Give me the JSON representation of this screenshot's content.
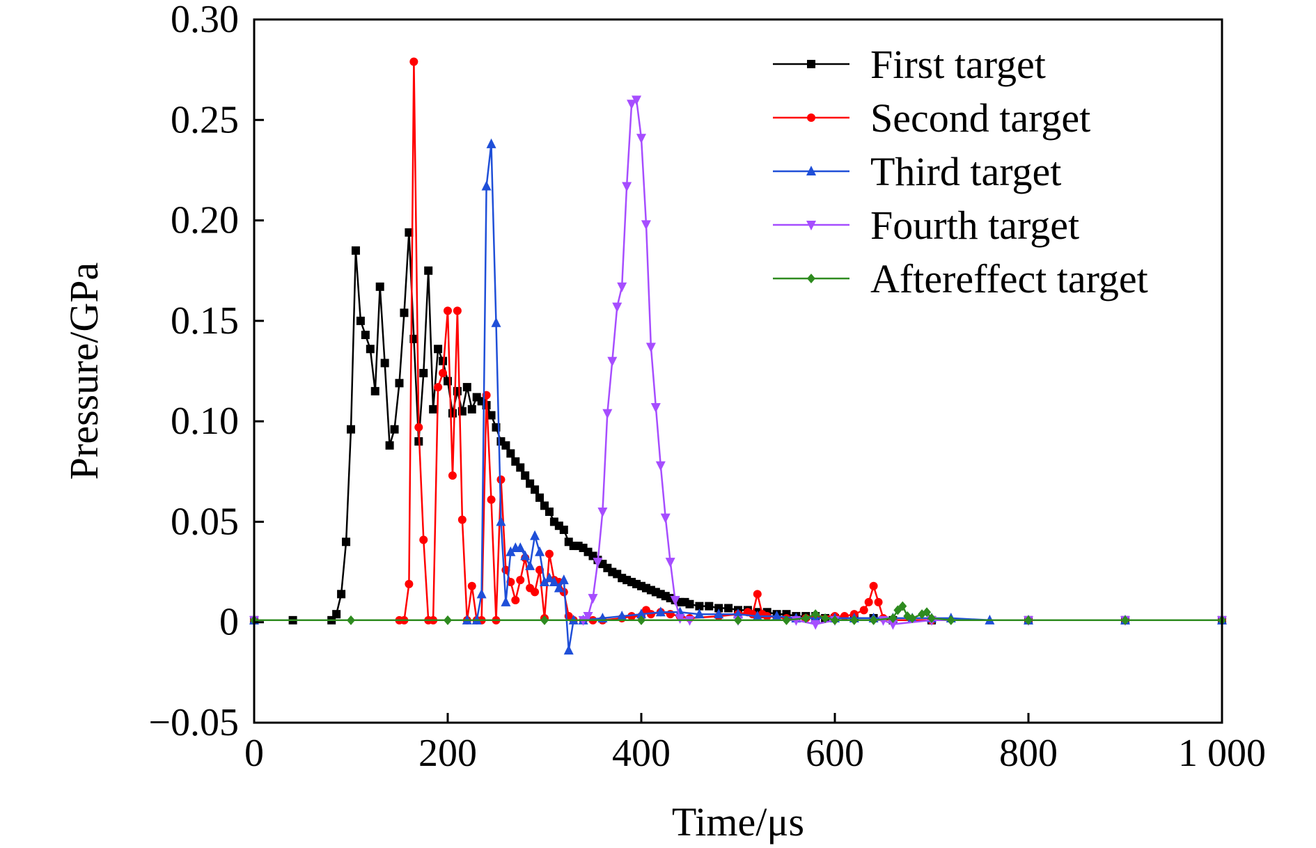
{
  "chart_data": {
    "type": "line",
    "xlabel": "Time/μs",
    "ylabel": "Pressure/GPa",
    "xlim": [
      0,
      1000
    ],
    "ylim": [
      -0.05,
      0.3
    ],
    "x_ticks": [
      0,
      200,
      400,
      600,
      800,
      1000
    ],
    "x_tick_labels": [
      "0",
      "200",
      "400",
      "600",
      "800",
      "1 000"
    ],
    "y_ticks": [
      -0.05,
      0,
      0.05,
      0.1,
      0.15,
      0.2,
      0.25,
      0.3
    ],
    "y_tick_labels": [
      "−0.05",
      "0",
      "0.05",
      "0.10",
      "0.15",
      "0.20",
      "0.25",
      "0.30"
    ],
    "grid": false,
    "legend_position": "top-right",
    "series": [
      {
        "name": "First target",
        "color": "#000000",
        "marker": "square",
        "points": [
          [
            0,
            0.001
          ],
          [
            40,
            0.001
          ],
          [
            80,
            0.001
          ],
          [
            85,
            0.004
          ],
          [
            90,
            0.014
          ],
          [
            95,
            0.04
          ],
          [
            100,
            0.096
          ],
          [
            105,
            0.185
          ],
          [
            110,
            0.15
          ],
          [
            115,
            0.143
          ],
          [
            120,
            0.136
          ],
          [
            125,
            0.115
          ],
          [
            130,
            0.167
          ],
          [
            135,
            0.129
          ],
          [
            140,
            0.088
          ],
          [
            145,
            0.096
          ],
          [
            150,
            0.119
          ],
          [
            155,
            0.154
          ],
          [
            160,
            0.194
          ],
          [
            165,
            0.141
          ],
          [
            170,
            0.09
          ],
          [
            175,
            0.124
          ],
          [
            180,
            0.175
          ],
          [
            185,
            0.106
          ],
          [
            190,
            0.136
          ],
          [
            195,
            0.13
          ],
          [
            200,
            0.12
          ],
          [
            205,
            0.104
          ],
          [
            210,
            0.115
          ],
          [
            215,
            0.105
          ],
          [
            220,
            0.117
          ],
          [
            225,
            0.106
          ],
          [
            230,
            0.112
          ],
          [
            235,
            0.11
          ],
          [
            240,
            0.108
          ],
          [
            245,
            0.103
          ],
          [
            250,
            0.097
          ],
          [
            255,
            0.09
          ],
          [
            260,
            0.088
          ],
          [
            265,
            0.084
          ],
          [
            270,
            0.08
          ],
          [
            275,
            0.077
          ],
          [
            280,
            0.073
          ],
          [
            285,
            0.069
          ],
          [
            290,
            0.066
          ],
          [
            295,
            0.062
          ],
          [
            300,
            0.058
          ],
          [
            305,
            0.055
          ],
          [
            310,
            0.05
          ],
          [
            315,
            0.048
          ],
          [
            320,
            0.046
          ],
          [
            325,
            0.04
          ],
          [
            330,
            0.038
          ],
          [
            335,
            0.038
          ],
          [
            340,
            0.037
          ],
          [
            345,
            0.035
          ],
          [
            350,
            0.033
          ],
          [
            355,
            0.031
          ],
          [
            360,
            0.029
          ],
          [
            365,
            0.027
          ],
          [
            370,
            0.025
          ],
          [
            375,
            0.024
          ],
          [
            380,
            0.022
          ],
          [
            385,
            0.021
          ],
          [
            390,
            0.02
          ],
          [
            395,
            0.019
          ],
          [
            400,
            0.018
          ],
          [
            405,
            0.017
          ],
          [
            410,
            0.016
          ],
          [
            415,
            0.015
          ],
          [
            420,
            0.014
          ],
          [
            425,
            0.013
          ],
          [
            430,
            0.012
          ],
          [
            435,
            0.011
          ],
          [
            440,
            0.01
          ],
          [
            445,
            0.01
          ],
          [
            450,
            0.009
          ],
          [
            460,
            0.008
          ],
          [
            470,
            0.008
          ],
          [
            480,
            0.007
          ],
          [
            490,
            0.007
          ],
          [
            500,
            0.006
          ],
          [
            510,
            0.006
          ],
          [
            520,
            0.005
          ],
          [
            530,
            0.005
          ],
          [
            540,
            0.004
          ],
          [
            550,
            0.004
          ],
          [
            560,
            0.003
          ],
          [
            570,
            0.003
          ],
          [
            580,
            0.003
          ],
          [
            590,
            0.002
          ],
          [
            600,
            0.002
          ],
          [
            620,
            0.002
          ],
          [
            640,
            0.002
          ],
          [
            660,
            0.001
          ],
          [
            700,
            0.001
          ],
          [
            800,
            0.001
          ],
          [
            900,
            0.001
          ],
          [
            1000,
            0.001
          ]
        ]
      },
      {
        "name": "Second target",
        "color": "#ff0000",
        "marker": "circle",
        "points": [
          [
            0,
            0.001
          ],
          [
            150,
            0.001
          ],
          [
            155,
            0.001
          ],
          [
            160,
            0.019
          ],
          [
            165,
            0.279
          ],
          [
            170,
            0.097
          ],
          [
            175,
            0.041
          ],
          [
            180,
            0.001
          ],
          [
            185,
            0.001
          ],
          [
            190,
            0.117
          ],
          [
            195,
            0.124
          ],
          [
            200,
            0.155
          ],
          [
            205,
            0.073
          ],
          [
            210,
            0.155
          ],
          [
            215,
            0.051
          ],
          [
            220,
            0.001
          ],
          [
            225,
            0.018
          ],
          [
            230,
            0.001
          ],
          [
            235,
            0.001
          ],
          [
            240,
            0.113
          ],
          [
            245,
            0.061
          ],
          [
            250,
            0.001
          ],
          [
            255,
            0.071
          ],
          [
            260,
            0.026
          ],
          [
            265,
            0.02
          ],
          [
            270,
            0.011
          ],
          [
            275,
            0.021
          ],
          [
            280,
            0.032
          ],
          [
            285,
            0.017
          ],
          [
            290,
            0.015
          ],
          [
            295,
            0.026
          ],
          [
            300,
            0.002
          ],
          [
            305,
            0.034
          ],
          [
            310,
            0.021
          ],
          [
            315,
            0.02
          ],
          [
            320,
            0.015
          ],
          [
            325,
            0.003
          ],
          [
            330,
            0.001
          ],
          [
            340,
            0.001
          ],
          [
            350,
            0.001
          ],
          [
            360,
            0.001
          ],
          [
            380,
            0.002
          ],
          [
            390,
            0.003
          ],
          [
            400,
            0.003
          ],
          [
            405,
            0.006
          ],
          [
            410,
            0.004
          ],
          [
            420,
            0.005
          ],
          [
            430,
            0.004
          ],
          [
            440,
            0.003
          ],
          [
            450,
            0.002
          ],
          [
            480,
            0.003
          ],
          [
            500,
            0.004
          ],
          [
            510,
            0.005
          ],
          [
            515,
            0.004
          ],
          [
            520,
            0.014
          ],
          [
            525,
            0.004
          ],
          [
            530,
            0.003
          ],
          [
            550,
            0.002
          ],
          [
            570,
            0.002
          ],
          [
            580,
            0.003
          ],
          [
            600,
            0.003
          ],
          [
            610,
            0.003
          ],
          [
            620,
            0.004
          ],
          [
            630,
            0.006
          ],
          [
            635,
            0.01
          ],
          [
            640,
            0.018
          ],
          [
            645,
            0.01
          ],
          [
            650,
            0.002
          ],
          [
            660,
            0.001
          ],
          [
            700,
            0.001
          ],
          [
            800,
            0.001
          ],
          [
            900,
            0.001
          ],
          [
            1000,
            0.001
          ]
        ]
      },
      {
        "name": "Third target",
        "color": "#1f4fd8",
        "marker": "triangle-up",
        "points": [
          [
            0,
            0.001
          ],
          [
            220,
            0.001
          ],
          [
            230,
            0.001
          ],
          [
            235,
            0.014
          ],
          [
            240,
            0.217
          ],
          [
            245,
            0.238
          ],
          [
            250,
            0.149
          ],
          [
            255,
            0.05
          ],
          [
            260,
            0.01
          ],
          [
            265,
            0.035
          ],
          [
            270,
            0.037
          ],
          [
            275,
            0.037
          ],
          [
            280,
            0.033
          ],
          [
            285,
            0.028
          ],
          [
            290,
            0.043
          ],
          [
            295,
            0.035
          ],
          [
            300,
            0.02
          ],
          [
            305,
            0.022
          ],
          [
            310,
            0.02
          ],
          [
            315,
            0.017
          ],
          [
            320,
            0.021
          ],
          [
            325,
            -0.014
          ],
          [
            330,
            0.001
          ],
          [
            340,
            0.001
          ],
          [
            360,
            0.002
          ],
          [
            380,
            0.003
          ],
          [
            400,
            0.004
          ],
          [
            420,
            0.005
          ],
          [
            440,
            0.005
          ],
          [
            460,
            0.004
          ],
          [
            480,
            0.004
          ],
          [
            500,
            0.004
          ],
          [
            520,
            0.003
          ],
          [
            540,
            0.003
          ],
          [
            560,
            0.002
          ],
          [
            580,
            0.002
          ],
          [
            600,
            0.002
          ],
          [
            620,
            0.002
          ],
          [
            640,
            0.002
          ],
          [
            660,
            0.002
          ],
          [
            680,
            0.002
          ],
          [
            700,
            0.002
          ],
          [
            720,
            0.002
          ],
          [
            760,
            0.001
          ],
          [
            800,
            0.001
          ],
          [
            900,
            0.001
          ],
          [
            1000,
            0.001
          ]
        ]
      },
      {
        "name": "Fourth target",
        "color": "#a64dff",
        "marker": "triangle-down",
        "points": [
          [
            0,
            0.001
          ],
          [
            340,
            0.001
          ],
          [
            345,
            0.003
          ],
          [
            350,
            0.012
          ],
          [
            355,
            0.03
          ],
          [
            360,
            0.055
          ],
          [
            365,
            0.104
          ],
          [
            370,
            0.13
          ],
          [
            375,
            0.157
          ],
          [
            380,
            0.167
          ],
          [
            385,
            0.217
          ],
          [
            390,
            0.258
          ],
          [
            395,
            0.26
          ],
          [
            400,
            0.241
          ],
          [
            405,
            0.198
          ],
          [
            410,
            0.137
          ],
          [
            415,
            0.107
          ],
          [
            420,
            0.078
          ],
          [
            425,
            0.052
          ],
          [
            430,
            0.03
          ],
          [
            435,
            0.011
          ],
          [
            440,
            0.002
          ],
          [
            450,
            0.001
          ],
          [
            500,
            0.001
          ],
          [
            560,
            0.001
          ],
          [
            580,
            -0.001
          ],
          [
            600,
            0.001
          ],
          [
            650,
            0.001
          ],
          [
            660,
            -0.001
          ],
          [
            700,
            0.001
          ],
          [
            800,
            0.001
          ],
          [
            900,
            0.001
          ],
          [
            1000,
            0.001
          ]
        ]
      },
      {
        "name": "Aftereffect target",
        "color": "#2e8b1f",
        "marker": "diamond",
        "points": [
          [
            0,
            0.001
          ],
          [
            100,
            0.001
          ],
          [
            200,
            0.001
          ],
          [
            300,
            0.001
          ],
          [
            400,
            0.001
          ],
          [
            500,
            0.001
          ],
          [
            550,
            0.001
          ],
          [
            570,
            0.002
          ],
          [
            580,
            0.004
          ],
          [
            590,
            0.002
          ],
          [
            600,
            0.001
          ],
          [
            620,
            0.001
          ],
          [
            640,
            0.001
          ],
          [
            660,
            0.002
          ],
          [
            665,
            0.006
          ],
          [
            670,
            0.008
          ],
          [
            675,
            0.003
          ],
          [
            680,
            0.002
          ],
          [
            690,
            0.004
          ],
          [
            695,
            0.005
          ],
          [
            700,
            0.002
          ],
          [
            720,
            0.001
          ],
          [
            800,
            0.001
          ],
          [
            900,
            0.001
          ],
          [
            1000,
            0.001
          ]
        ]
      }
    ]
  }
}
